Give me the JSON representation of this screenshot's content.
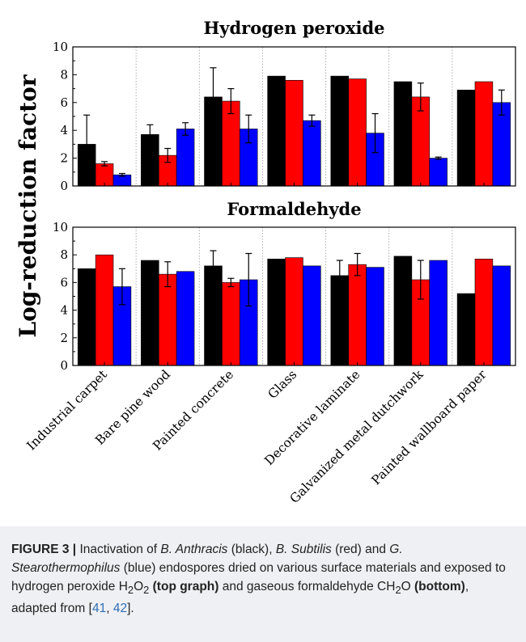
{
  "chart_data": {
    "type": "bar",
    "ylabel": "Log-reduction factor",
    "categories": [
      "Industrial carpet",
      "Bare pine wood",
      "Painted concrete",
      "Glass",
      "Decorative laminate",
      "Galvanized metal dutchwork",
      "Painted wallboard paper"
    ],
    "panels": [
      {
        "title": "Hydrogen peroxide",
        "ylim": [
          0,
          10
        ],
        "yticks": [
          "0",
          "2",
          "4",
          "6",
          "8",
          "10"
        ],
        "series": [
          {
            "color": "#000000",
            "values": [
              3.0,
              3.7,
              6.4,
              7.9,
              7.9,
              7.5,
              6.9
            ],
            "errors": [
              2.1,
              0.7,
              2.1,
              0,
              0,
              0,
              0
            ]
          },
          {
            "color": "#ff0000",
            "values": [
              1.6,
              2.2,
              6.1,
              7.6,
              7.7,
              6.4,
              7.5
            ],
            "errors": [
              0.15,
              0.5,
              0.9,
              0,
              0,
              1.0,
              0
            ]
          },
          {
            "color": "#0000ff",
            "values": [
              0.8,
              4.1,
              4.1,
              4.7,
              3.8,
              2.0,
              6.0
            ],
            "errors": [
              0.1,
              0.45,
              1.0,
              0.4,
              1.4,
              0.08,
              0.9
            ]
          }
        ]
      },
      {
        "title": "Formaldehyde",
        "ylim": [
          0,
          10
        ],
        "yticks": [
          "0",
          "2",
          "4",
          "6",
          "8",
          "10"
        ],
        "series": [
          {
            "color": "#000000",
            "values": [
              7.0,
              7.6,
              7.2,
              7.7,
              6.5,
              7.9,
              5.2
            ],
            "errors": [
              0,
              0,
              1.1,
              0,
              1.1,
              0,
              0
            ]
          },
          {
            "color": "#ff0000",
            "values": [
              8.0,
              6.6,
              6.0,
              7.8,
              7.3,
              6.2,
              7.7
            ],
            "errors": [
              0,
              0.9,
              0.3,
              0,
              0.8,
              1.4,
              0
            ]
          },
          {
            "color": "#0000ff",
            "values": [
              5.7,
              6.8,
              6.2,
              7.2,
              7.1,
              7.6,
              7.2
            ],
            "errors": [
              1.3,
              0,
              1.9,
              0,
              0,
              0,
              0
            ]
          }
        ]
      }
    ],
    "grid": "dotted vertical separators between categories"
  },
  "caption": {
    "label": "FIGURE 3 |",
    "t1": " Inactivation of ",
    "i1": "B. Anthracis",
    "t2": " (black), ",
    "i2": "B. Subtilis",
    "t3": " (red) and ",
    "i3": "G. Stearothermophilus",
    "t4": " (blue) endospores dried on various surface materials and exposed to hydrogen peroxide H",
    "sub1": "2",
    "t5": "O",
    "sub2": "2",
    "b1": " (top graph)",
    "t6": " and gaseous formaldehyde CH",
    "sub3": "2",
    "t7": "O ",
    "b2": "(bottom)",
    "t8": ", adapted from [",
    "r1": "41",
    "t9": ", ",
    "r2": "42",
    "t10": "]."
  }
}
